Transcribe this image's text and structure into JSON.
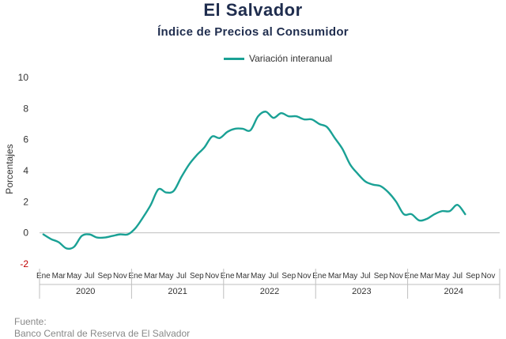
{
  "title": "El Salvador",
  "subtitle": "Índice de Precios al Consumidor",
  "legend_label": "Variación interanual",
  "source_label": "Fuente:",
  "source_text": "Banco Central de Reserva de El Salvador",
  "colors": {
    "line": "#1aa195",
    "title": "#1f2d4e",
    "axis": "#bfbfbf"
  },
  "chart_data": {
    "type": "line",
    "title": "Índice de Precios al Consumidor",
    "ylabel": "Porcentajes",
    "xlabel": "",
    "ylim": [
      -2,
      10
    ],
    "yticks": [
      "-2",
      "0",
      "2",
      "4",
      "6",
      "8",
      "10"
    ],
    "grid": false,
    "legend": "top-center",
    "month_labels": [
      "Ene",
      "Mar",
      "May",
      "Jul",
      "Sep",
      "Nov"
    ],
    "years": [
      "2020",
      "2021",
      "2022",
      "2023",
      "2024"
    ],
    "series": [
      {
        "name": "Variación interanual",
        "x": [
          "2020-01",
          "2020-02",
          "2020-03",
          "2020-04",
          "2020-05",
          "2020-06",
          "2020-07",
          "2020-08",
          "2020-09",
          "2020-10",
          "2020-11",
          "2020-12",
          "2021-01",
          "2021-02",
          "2021-03",
          "2021-04",
          "2021-05",
          "2021-06",
          "2021-07",
          "2021-08",
          "2021-09",
          "2021-10",
          "2021-11",
          "2021-12",
          "2022-01",
          "2022-02",
          "2022-03",
          "2022-04",
          "2022-05",
          "2022-06",
          "2022-07",
          "2022-08",
          "2022-09",
          "2022-10",
          "2022-11",
          "2022-12",
          "2023-01",
          "2023-02",
          "2023-03",
          "2023-04",
          "2023-05",
          "2023-06",
          "2023-07",
          "2023-08",
          "2023-09",
          "2023-10",
          "2023-11",
          "2023-12",
          "2024-01",
          "2024-02",
          "2024-03",
          "2024-04",
          "2024-05",
          "2024-06",
          "2024-07",
          "2024-08"
        ],
        "values": [
          -0.1,
          -0.4,
          -0.6,
          -1.0,
          -0.9,
          -0.2,
          -0.1,
          -0.3,
          -0.3,
          -0.2,
          -0.1,
          -0.1,
          0.3,
          1.0,
          1.8,
          2.8,
          2.6,
          2.7,
          3.6,
          4.4,
          5.0,
          5.5,
          6.2,
          6.1,
          6.5,
          6.7,
          6.7,
          6.6,
          7.5,
          7.8,
          7.4,
          7.7,
          7.5,
          7.5,
          7.3,
          7.3,
          7.0,
          6.8,
          6.1,
          5.4,
          4.4,
          3.8,
          3.3,
          3.1,
          3.0,
          2.6,
          2.0,
          1.2,
          1.2,
          0.8,
          0.9,
          1.2,
          1.4,
          1.4,
          1.8,
          1.2
        ]
      }
    ]
  }
}
